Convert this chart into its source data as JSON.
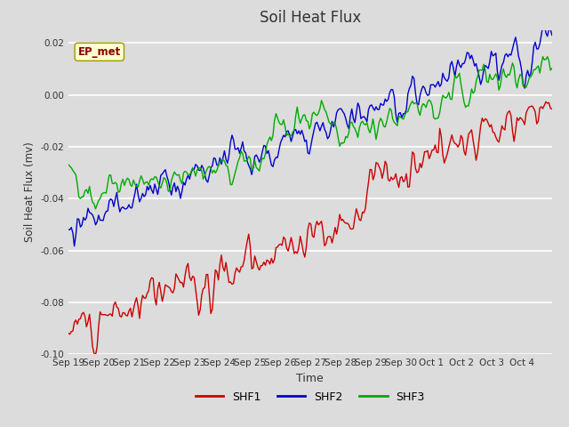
{
  "title": "Soil Heat Flux",
  "xlabel": "Time",
  "ylabel": "Soil Heat Flux (mv)",
  "ylim": [
    -0.1,
    0.025
  ],
  "yticks": [
    -0.1,
    -0.08,
    -0.06,
    -0.04,
    -0.02,
    0.0,
    0.02
  ],
  "plot_bg_color": "#dcdcdc",
  "fig_bg_color": "#dcdcdc",
  "shf1_color": "#cc0000",
  "shf2_color": "#0000cc",
  "shf3_color": "#00aa00",
  "legend_labels": [
    "SHF1",
    "SHF2",
    "SHF3"
  ],
  "annotation_text": "EP_met",
  "xtick_labels": [
    "Sep 19",
    "Sep 20",
    "Sep 21",
    "Sep 22",
    "Sep 23",
    "Sep 24",
    "Sep 25",
    "Sep 26",
    "Sep 27",
    "Sep 28",
    "Sep 29",
    "Sep 30",
    "Oct 1",
    "Oct 2",
    "Oct 3",
    "Oct 4"
  ],
  "n_points": 320,
  "line_width": 1.0
}
